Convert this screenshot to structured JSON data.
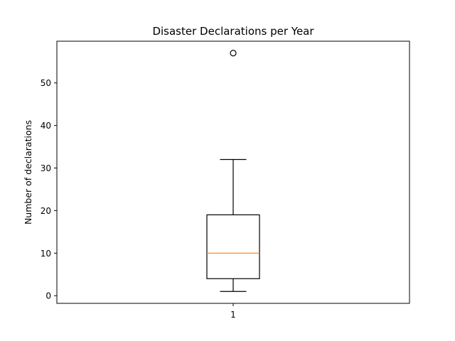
{
  "chart_data": {
    "type": "box",
    "title": "Disaster Declarations per Year",
    "xlabel": "",
    "ylabel": "Number of declarations",
    "categories": [
      "1"
    ],
    "ylim": [
      -1.8,
      59.8
    ],
    "yticks": [
      0,
      10,
      20,
      30,
      40,
      50
    ],
    "grid": false,
    "legend": "none",
    "boxes": [
      {
        "category": "1",
        "whisker_low": 1,
        "q1": 4,
        "median": 10,
        "q3": 19,
        "whisker_high": 32,
        "outliers": [
          57
        ]
      }
    ],
    "colors": {
      "box": "#000000",
      "median": "#ff7f0e",
      "background": "#ffffff"
    }
  }
}
